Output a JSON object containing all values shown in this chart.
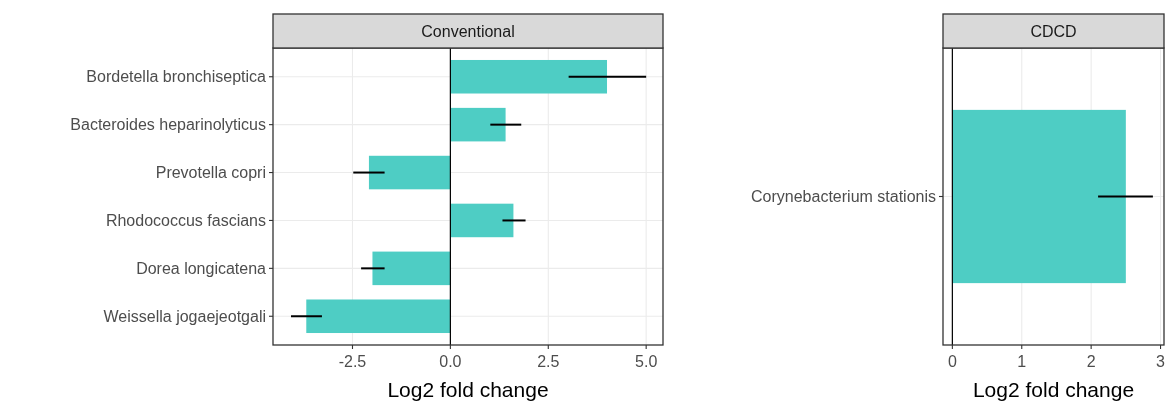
{
  "chart_data": [
    {
      "type": "bar",
      "title": "Conventional",
      "orientation": "horizontal",
      "xlabel": "Log2 fold change",
      "categories": [
        "Bordetella bronchiseptica",
        "Bacteroides heparinolyticus",
        "Prevotella copri",
        "Rhodococcus fascians",
        "Dorea longicatena",
        "Weissella jogaejeotgali"
      ],
      "values": [
        4.0,
        1.41,
        -2.08,
        1.61,
        -1.99,
        -3.68
      ],
      "errors": [
        [
          3.02,
          5.0
        ],
        [
          1.02,
          1.81
        ],
        [
          -2.48,
          -1.68
        ],
        [
          1.33,
          1.92
        ],
        [
          -2.28,
          -1.68
        ],
        [
          -4.07,
          -3.28
        ]
      ],
      "color": "#4ecdc4",
      "xlim": [
        -4.53,
        5.43
      ],
      "xticks": [
        {
          "value": -2.5,
          "label": "-2.5"
        },
        {
          "value": 0,
          "label": "0.0"
        },
        {
          "value": 2.5,
          "label": "2.5"
        },
        {
          "value": 5,
          "label": "5.0"
        }
      ],
      "ref_lines": [
        {
          "axis": "x",
          "value": 0,
          "color": "#000000"
        }
      ],
      "grid": true
    },
    {
      "type": "bar",
      "title": "CDCD",
      "orientation": "horizontal",
      "xlabel": "Log2 fold change",
      "categories": [
        "Corynebacterium stationis"
      ],
      "values": [
        2.5
      ],
      "errors": [
        [
          2.1,
          2.89
        ]
      ],
      "color": "#4ecdc4",
      "xlim": [
        -0.135,
        3.05
      ],
      "xticks": [
        0,
        1,
        2,
        3
      ],
      "ref_lines": [
        {
          "axis": "x",
          "value": 0,
          "color": "#000000"
        }
      ],
      "grid": true
    }
  ]
}
